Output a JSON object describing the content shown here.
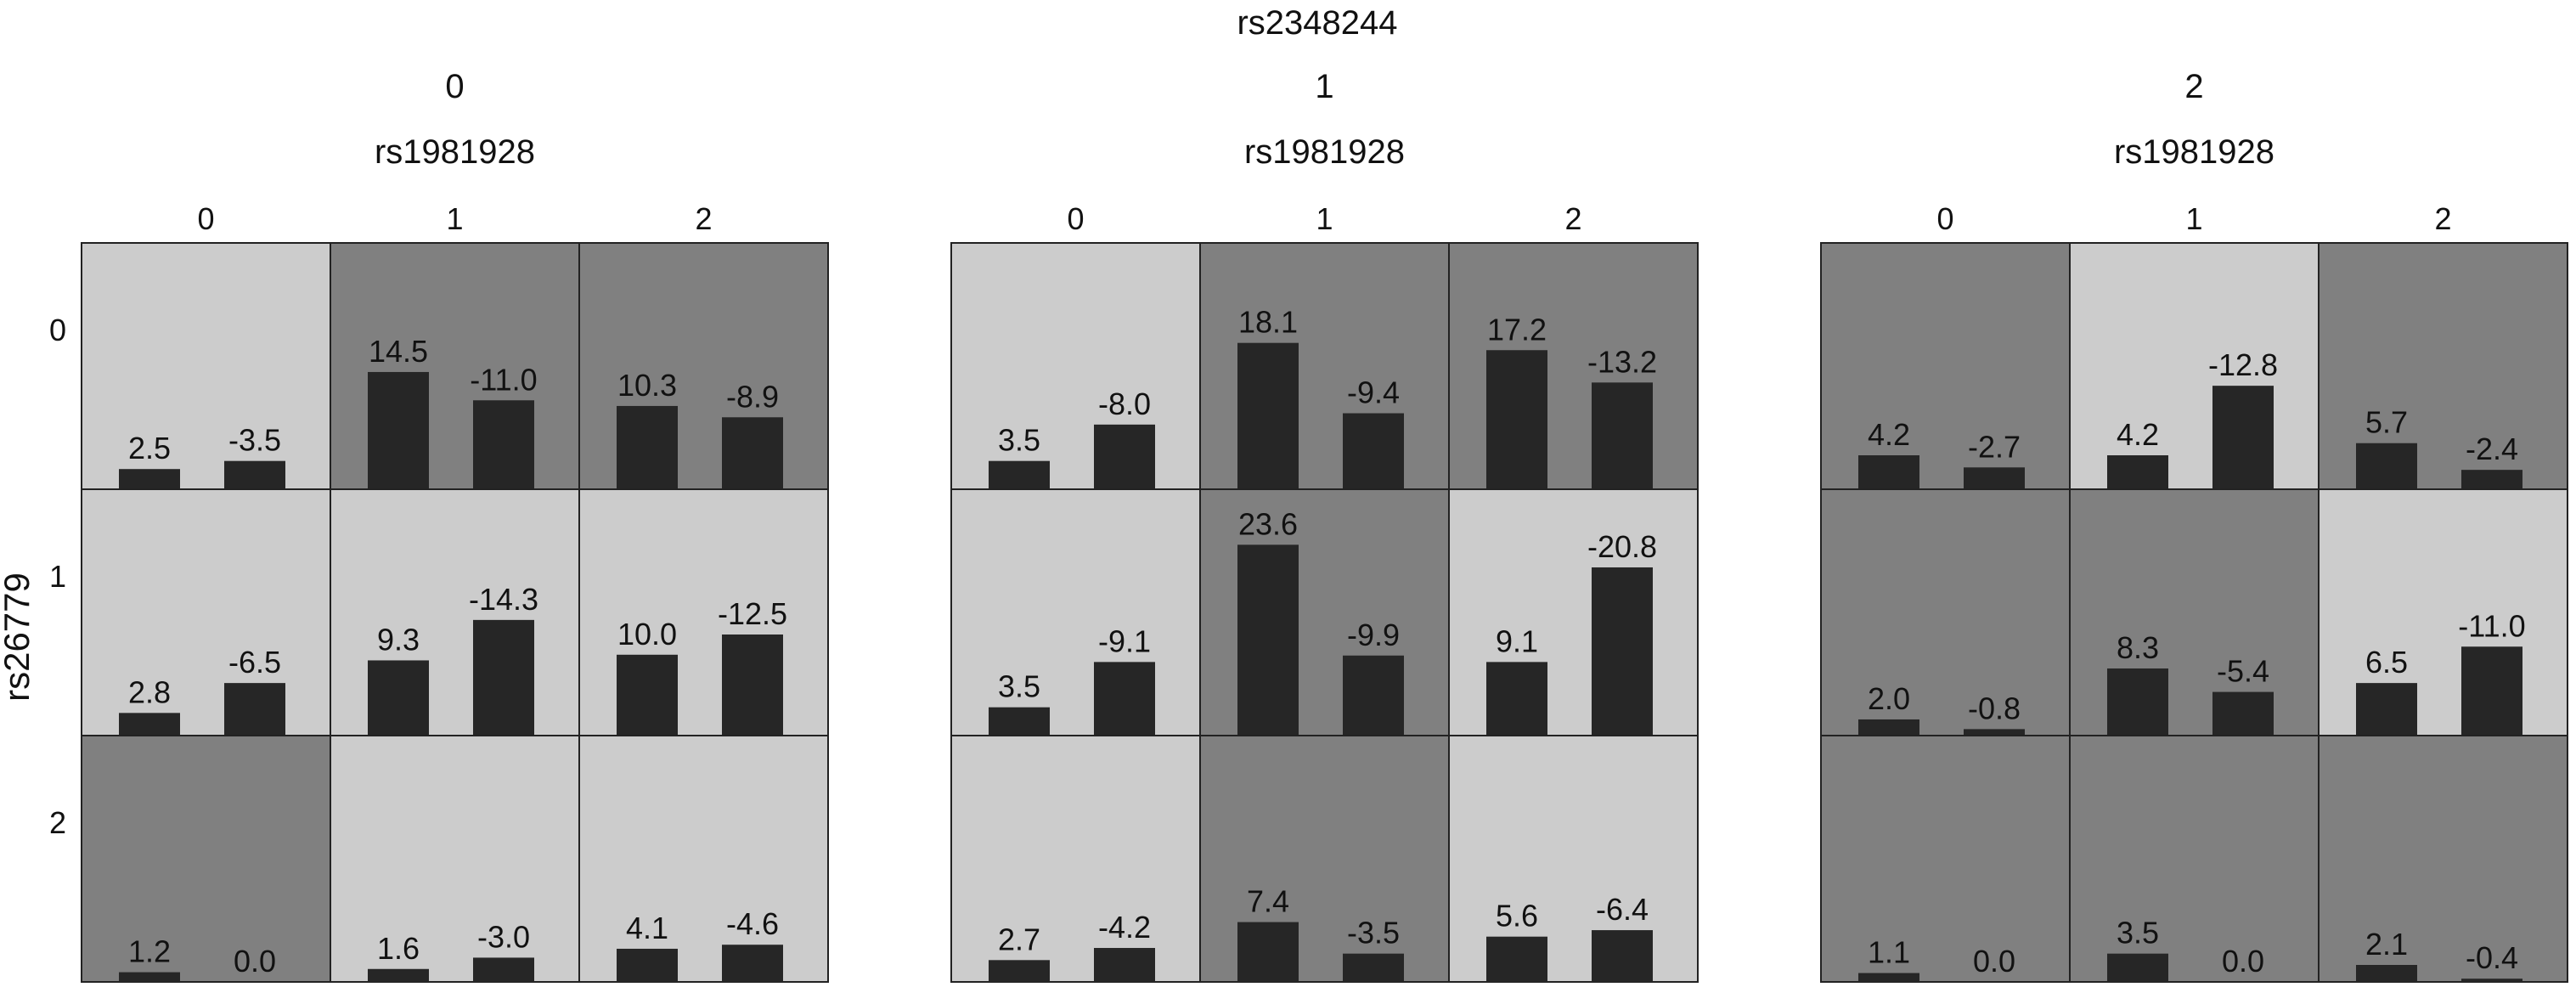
{
  "chart_data": {
    "type": "bar",
    "title": "rs2348244",
    "panel_levels": [
      "0",
      "1",
      "2"
    ],
    "column_variable": "rs1981928",
    "column_levels": [
      "0",
      "1",
      "2"
    ],
    "row_variable": "rs26779",
    "row_levels": [
      "0",
      "1",
      "2"
    ],
    "colors": {
      "light": "#cccccc",
      "dark": "#808080",
      "bar": "#262626",
      "border": "#222222"
    },
    "ylim": [
      0,
      25
    ],
    "panels": [
      {
        "level": "0",
        "shading": [
          [
            "light",
            "dark",
            "dark"
          ],
          [
            "light",
            "light",
            "light"
          ],
          [
            "dark",
            "light",
            "light"
          ]
        ],
        "cells": [
          [
            [
              2.5,
              -3.5
            ],
            [
              14.5,
              -11.0
            ],
            [
              10.3,
              -8.9
            ]
          ],
          [
            [
              2.8,
              -6.5
            ],
            [
              9.3,
              -14.3
            ],
            [
              10.0,
              -12.5
            ]
          ],
          [
            [
              1.2,
              0.0
            ],
            [
              1.6,
              -3.0
            ],
            [
              4.1,
              -4.6
            ]
          ]
        ]
      },
      {
        "level": "1",
        "shading": [
          [
            "light",
            "dark",
            "dark"
          ],
          [
            "light",
            "dark",
            "light"
          ],
          [
            "light",
            "dark",
            "light"
          ]
        ],
        "cells": [
          [
            [
              3.5,
              -8.0
            ],
            [
              18.1,
              -9.4
            ],
            [
              17.2,
              -13.2
            ]
          ],
          [
            [
              3.5,
              -9.1
            ],
            [
              23.6,
              -9.9
            ],
            [
              9.1,
              -20.8
            ]
          ],
          [
            [
              2.7,
              -4.2
            ],
            [
              7.4,
              -3.5
            ],
            [
              5.6,
              -6.4
            ]
          ]
        ]
      },
      {
        "level": "2",
        "shading": [
          [
            "dark",
            "light",
            "dark"
          ],
          [
            "dark",
            "dark",
            "light"
          ],
          [
            "dark",
            "dark",
            "dark"
          ]
        ],
        "cells": [
          [
            [
              4.2,
              -2.7
            ],
            [
              4.2,
              -12.8
            ],
            [
              5.7,
              -2.4
            ]
          ],
          [
            [
              2.0,
              -0.8
            ],
            [
              8.3,
              -5.4
            ],
            [
              6.5,
              -11.0
            ]
          ],
          [
            [
              1.1,
              0.0
            ],
            [
              3.5,
              0.0
            ],
            [
              2.1,
              -0.4
            ]
          ]
        ]
      }
    ]
  }
}
